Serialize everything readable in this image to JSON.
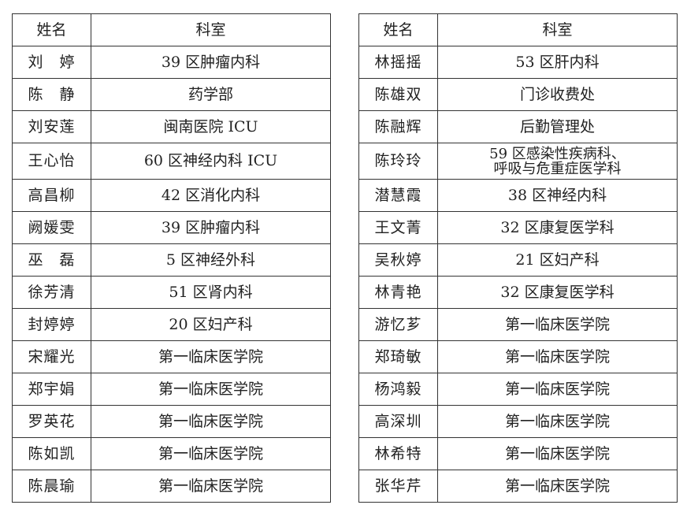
{
  "headers": {
    "name": "姓名",
    "dept": "科室"
  },
  "left": [
    {
      "name": "刘　婷",
      "dept": "39 区肿瘤内科"
    },
    {
      "name": "陈　静",
      "dept": "药学部"
    },
    {
      "name": "刘安莲",
      "dept": "闽南医院 ICU"
    },
    {
      "name": "王心怡",
      "dept": "60 区神经内科 ICU"
    },
    {
      "name": "高昌柳",
      "dept": "42 区消化内科"
    },
    {
      "name": "阙媛雯",
      "dept": "39 区肿瘤内科"
    },
    {
      "name": "巫　磊",
      "dept": "5 区神经外科"
    },
    {
      "name": "徐芳清",
      "dept": "51 区肾内科"
    },
    {
      "name": "封婷婷",
      "dept": "20 区妇产科"
    },
    {
      "name": "宋耀光",
      "dept": "第一临床医学院"
    },
    {
      "name": "郑宇娟",
      "dept": "第一临床医学院"
    },
    {
      "name": "罗英花",
      "dept": "第一临床医学院"
    },
    {
      "name": "陈如凯",
      "dept": "第一临床医学院"
    },
    {
      "name": "陈晨瑜",
      "dept": "第一临床医学院"
    }
  ],
  "right": [
    {
      "name": "林摇摇",
      "dept": "53 区肝内科"
    },
    {
      "name": "陈雄双",
      "dept": "门诊收费处"
    },
    {
      "name": "陈融辉",
      "dept": "后勤管理处"
    },
    {
      "name": "陈玲玲",
      "dept": "59 区感染性疾病科、",
      "dept2": "呼吸与危重症医学科"
    },
    {
      "name": "潜慧霞",
      "dept": "38 区神经内科"
    },
    {
      "name": "王文菁",
      "dept": "32 区康复医学科"
    },
    {
      "name": "吴秋婷",
      "dept": "21 区妇产科"
    },
    {
      "name": "林青艳",
      "dept": "32 区康复医学科"
    },
    {
      "name": "游忆芗",
      "dept": "第一临床医学院"
    },
    {
      "name": "郑琦敏",
      "dept": "第一临床医学院"
    },
    {
      "name": "杨鸿毅",
      "dept": "第一临床医学院"
    },
    {
      "name": "高深圳",
      "dept": "第一临床医学院"
    },
    {
      "name": "林希特",
      "dept": "第一临床医学院"
    },
    {
      "name": "张华芹",
      "dept": "第一临床医学院"
    }
  ]
}
